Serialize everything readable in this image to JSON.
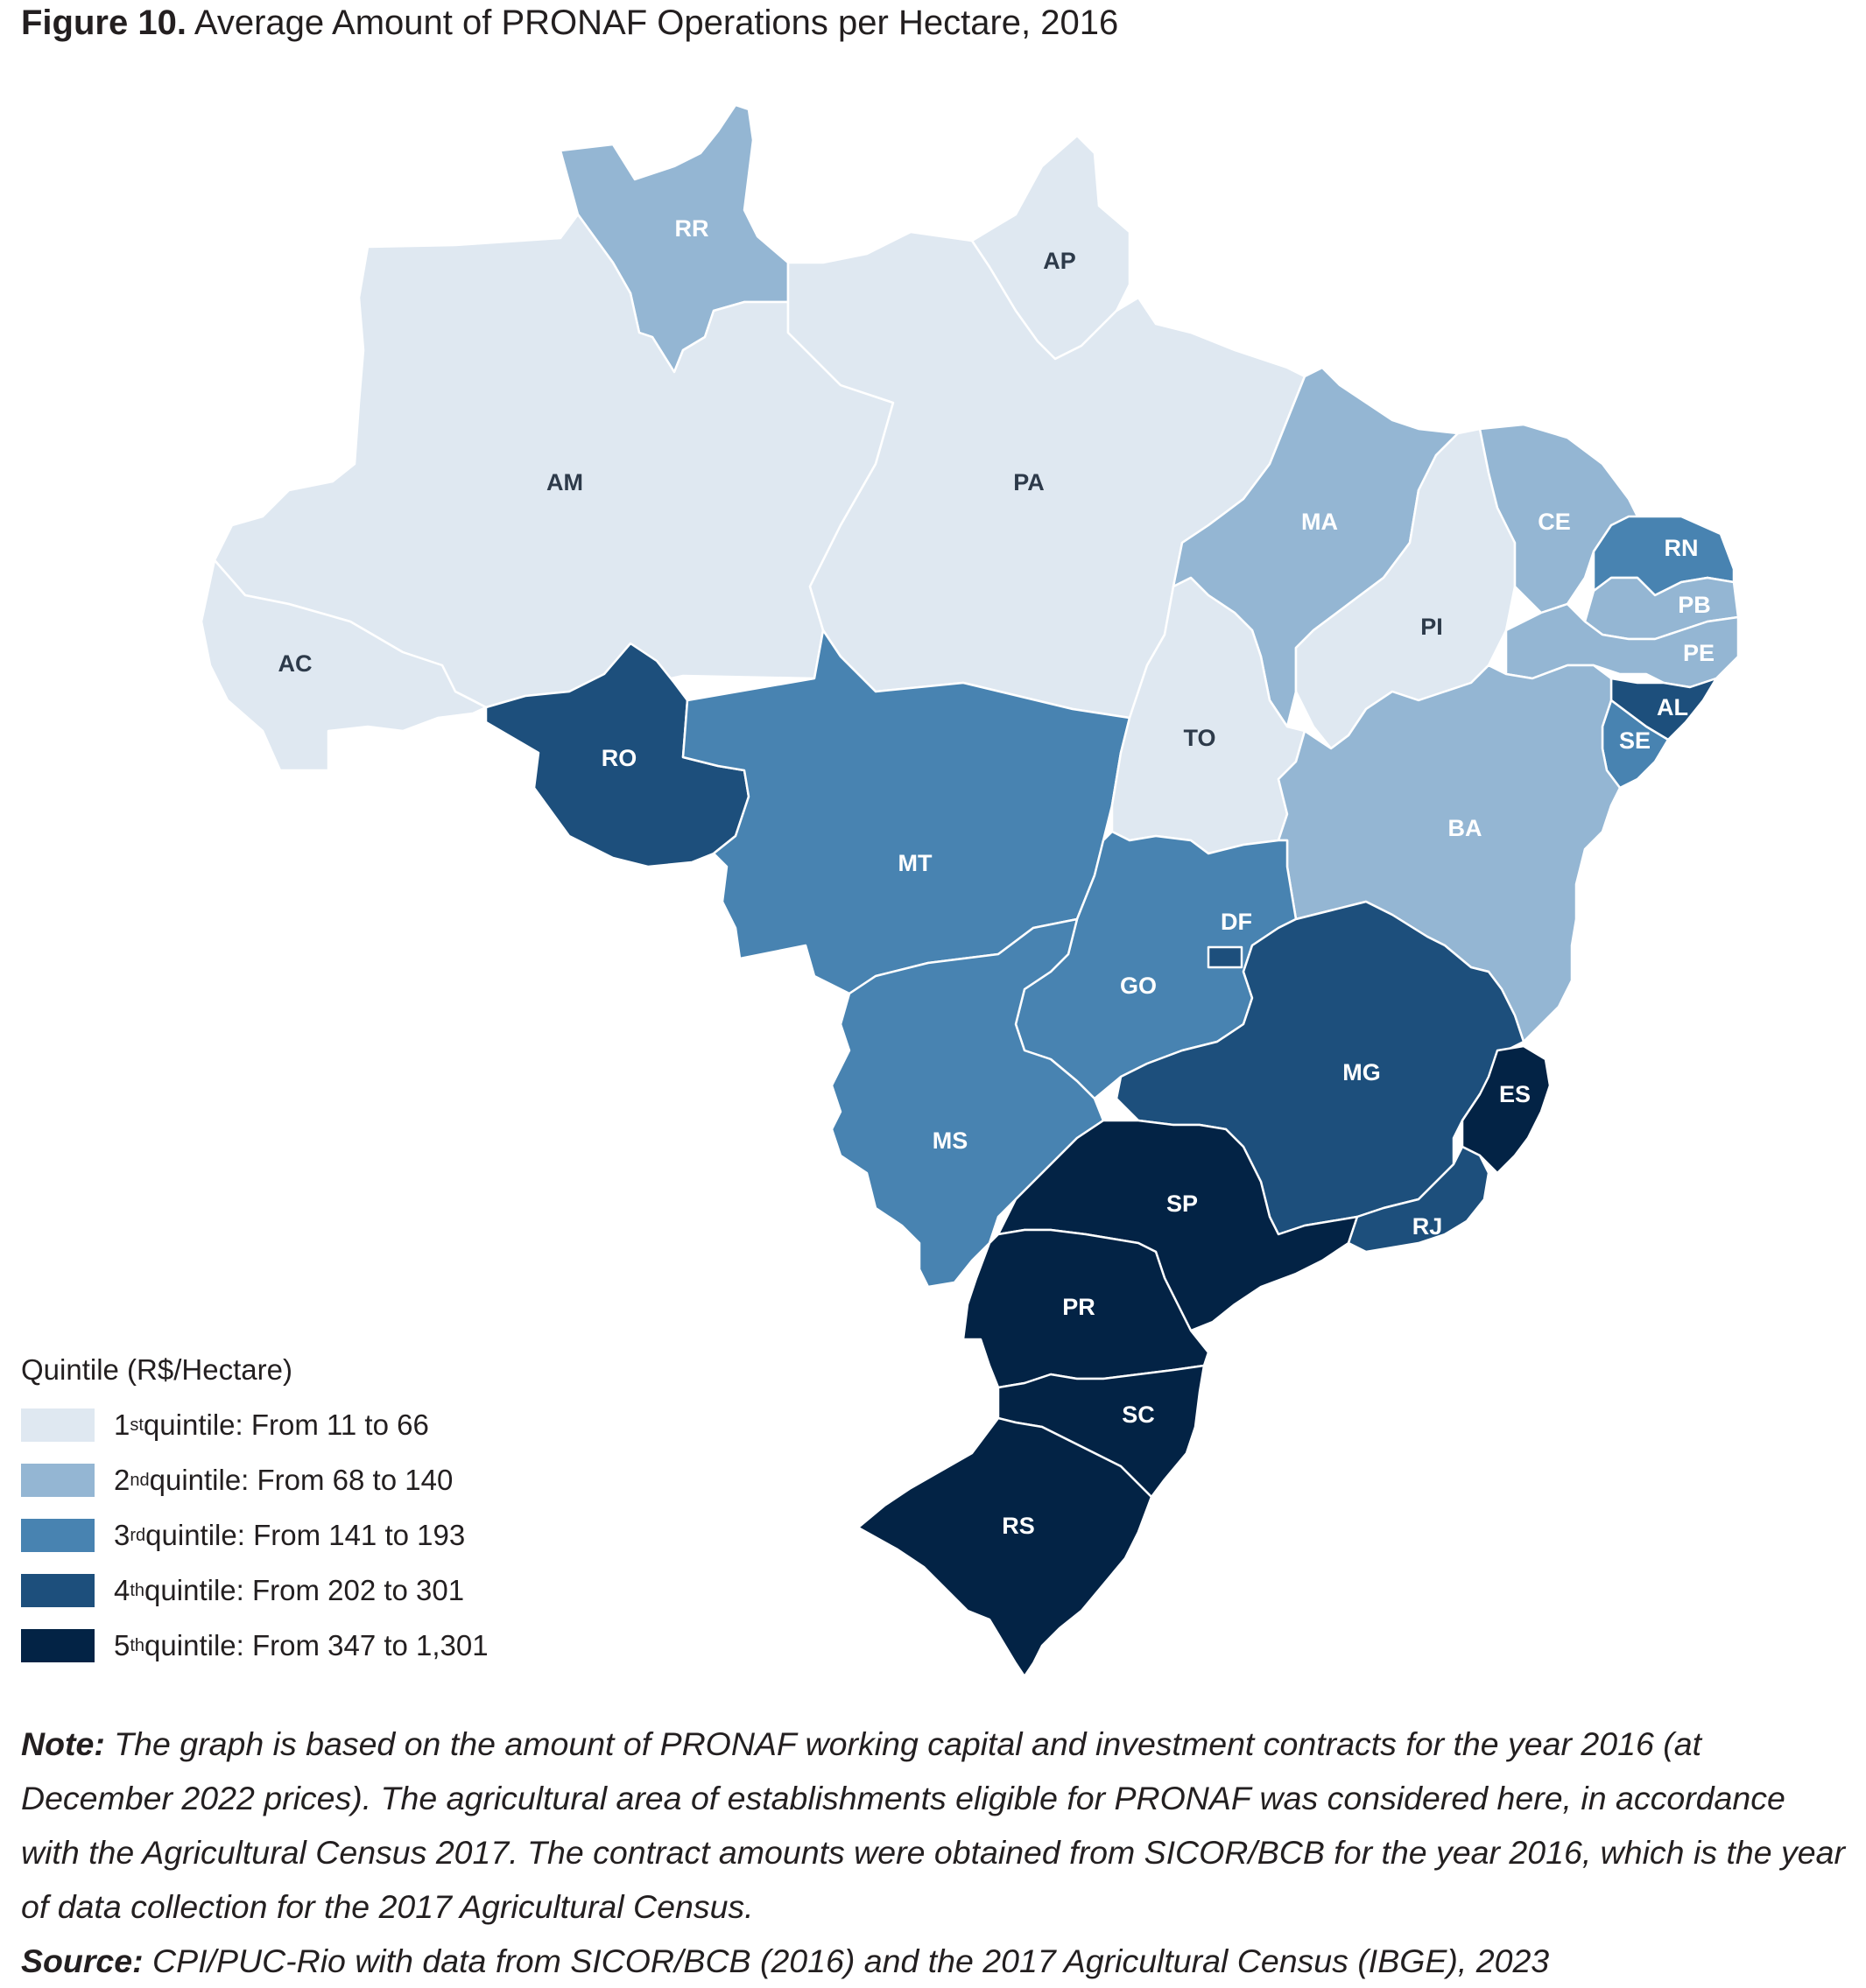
{
  "title": {
    "lead": "Figure 10.",
    "text": " Average Amount of PRONAF Operations per Hectare, 2016"
  },
  "map": {
    "regions": [
      {
        "abbr": "RR",
        "quintile": 2
      },
      {
        "abbr": "AP",
        "quintile": 1
      },
      {
        "abbr": "AM",
        "quintile": 1
      },
      {
        "abbr": "PA",
        "quintile": 1
      },
      {
        "abbr": "AC",
        "quintile": 1
      },
      {
        "abbr": "RO",
        "quintile": 4
      },
      {
        "abbr": "MT",
        "quintile": 3
      },
      {
        "abbr": "MA",
        "quintile": 2
      },
      {
        "abbr": "PI",
        "quintile": 1
      },
      {
        "abbr": "CE",
        "quintile": 2
      },
      {
        "abbr": "RN",
        "quintile": 3
      },
      {
        "abbr": "PB",
        "quintile": 2
      },
      {
        "abbr": "PE",
        "quintile": 2
      },
      {
        "abbr": "AL",
        "quintile": 4
      },
      {
        "abbr": "SE",
        "quintile": 3
      },
      {
        "abbr": "TO",
        "quintile": 1
      },
      {
        "abbr": "BA",
        "quintile": 2
      },
      {
        "abbr": "GO",
        "quintile": 3
      },
      {
        "abbr": "DF",
        "quintile": 4
      },
      {
        "abbr": "MG",
        "quintile": 4
      },
      {
        "abbr": "ES",
        "quintile": 5
      },
      {
        "abbr": "MS",
        "quintile": 3
      },
      {
        "abbr": "SP",
        "quintile": 5
      },
      {
        "abbr": "RJ",
        "quintile": 4
      },
      {
        "abbr": "PR",
        "quintile": 5
      },
      {
        "abbr": "SC",
        "quintile": 5
      },
      {
        "abbr": "RS",
        "quintile": 5
      }
    ]
  },
  "legend": {
    "title": "Quintile (R$/Hectare)",
    "items": [
      {
        "ord": "1",
        "sup": "st",
        "label": " quintile: From 11 to 66",
        "color": "#dfe8f1"
      },
      {
        "ord": "2",
        "sup": "nd",
        "label": " quintile: From 68 to 140",
        "color": "#94b6d3"
      },
      {
        "ord": "3",
        "sup": "rd",
        "label": " quintile: From 141 to 193",
        "color": "#4883b1"
      },
      {
        "ord": "4",
        "sup": "th",
        "label": " quintile: From 202 to 301",
        "color": "#1d4f7c"
      },
      {
        "ord": "5",
        "sup": "th",
        "label": " quintile: From 347 to 1,301",
        "color": "#032345"
      }
    ]
  },
  "note": {
    "lead": "Note:",
    "text": " The graph is based on the amount of PRONAF working capital and investment contracts for the year 2016 (at December 2022 prices). The agricultural area of establishments eligible for PRONAF was considered here, in accordance with the Agricultural Census 2017. The contract amounts were obtained from SICOR/BCB for the year 2016, which is the year of data collection for the 2017 Agricultural Census."
  },
  "source": {
    "lead": "Source:",
    "text": " CPI/PUC-Rio with data from SICOR/BCB (2016) and the 2017 Agricultural Census (IBGE), 2023"
  }
}
